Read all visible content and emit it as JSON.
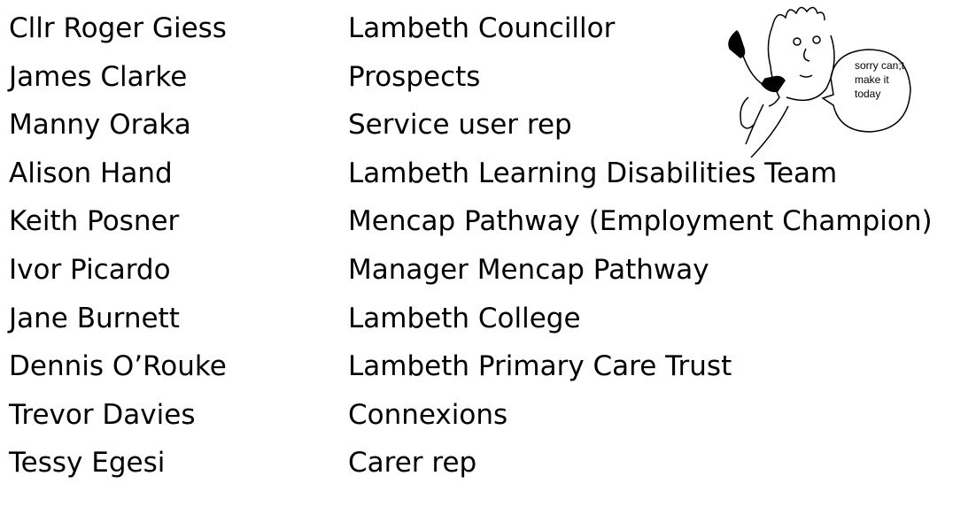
{
  "attendees": [
    [
      "Cllr Roger Giess",
      "Lambeth Councillor"
    ],
    [
      "James Clarke",
      "Prospects"
    ],
    [
      "Manny Oraka",
      "Service user rep"
    ],
    [
      "Alison Hand",
      "Lambeth Learning Disabilities Team"
    ],
    [
      "Keith Posner",
      "Mencap Pathway (Employment Champion)"
    ],
    [
      "Ivor Picardo",
      "Manager Mencap Pathway"
    ],
    [
      "Jane Burnett",
      "Lambeth College"
    ],
    [
      "Dennis O’Rouke",
      "Lambeth Primary Care Trust"
    ],
    [
      "Trevor Davies",
      "Connexions"
    ],
    [
      "Tessy Egesi",
      "Carer rep"
    ]
  ],
  "bubble": [
    "sorry can;t",
    "make it",
    "today"
  ]
}
